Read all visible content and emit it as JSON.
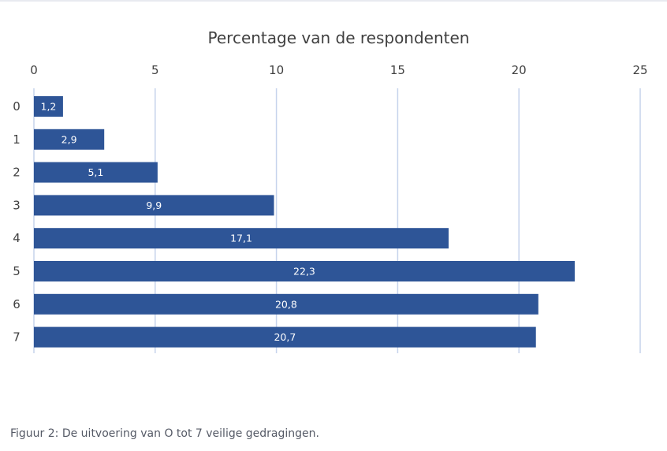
{
  "caption": "Figuur 2: De uitvoering van O tot 7 veilige gedragingen.",
  "colors": {
    "bar": "#2e5597",
    "gridline": "#c6d3ec",
    "text": "#404040"
  },
  "chart_data": {
    "type": "bar",
    "orientation": "horizontal",
    "title": "",
    "xlabel": "Percentage van de respondenten",
    "ylabel": "",
    "x_axis_position": "top",
    "xlim": [
      0,
      25
    ],
    "xticks": [
      0,
      5,
      10,
      15,
      20,
      25
    ],
    "grid": true,
    "legend": "none",
    "categories": [
      "0",
      "1",
      "2",
      "3",
      "4",
      "5",
      "6",
      "7"
    ],
    "values": [
      1.2,
      2.9,
      5.1,
      9.9,
      17.1,
      22.3,
      20.8,
      20.7
    ],
    "data_labels": [
      "1,2",
      "2,9",
      "5,1",
      "9,9",
      "17,1",
      "22,3",
      "20,8",
      "20,7"
    ]
  }
}
